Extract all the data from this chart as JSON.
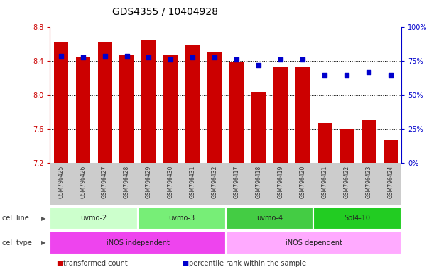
{
  "title": "GDS4355 / 10404928",
  "samples": [
    "GSM796425",
    "GSM796426",
    "GSM796427",
    "GSM796428",
    "GSM796429",
    "GSM796430",
    "GSM796431",
    "GSM796432",
    "GSM796417",
    "GSM796418",
    "GSM796419",
    "GSM796420",
    "GSM796421",
    "GSM796422",
    "GSM796423",
    "GSM796424"
  ],
  "transformed_count": [
    8.62,
    8.45,
    8.62,
    8.47,
    8.65,
    8.48,
    8.59,
    8.5,
    8.39,
    8.04,
    8.33,
    8.33,
    7.68,
    7.6,
    7.7,
    7.48
  ],
  "percentile_rank": [
    79,
    78,
    79,
    79,
    78,
    76,
    78,
    78,
    76,
    72,
    76,
    76,
    65,
    65,
    67,
    65
  ],
  "ylim_left": [
    7.2,
    8.8
  ],
  "ylim_right": [
    0,
    100
  ],
  "yticks_left": [
    7.2,
    7.6,
    8.0,
    8.4,
    8.8
  ],
  "yticks_right": [
    0,
    25,
    50,
    75,
    100
  ],
  "ytick_labels_right": [
    "0%",
    "25%",
    "50%",
    "75%",
    "100%"
  ],
  "bar_color": "#cc0000",
  "dot_color": "#0000cc",
  "cell_lines": [
    {
      "label": "uvmo-2",
      "start": 0,
      "end": 4,
      "color": "#ccffcc"
    },
    {
      "label": "uvmo-3",
      "start": 4,
      "end": 8,
      "color": "#77ee77"
    },
    {
      "label": "uvmo-4",
      "start": 8,
      "end": 12,
      "color": "#44cc44"
    },
    {
      "label": "Spl4-10",
      "start": 12,
      "end": 16,
      "color": "#22cc22"
    }
  ],
  "cell_types": [
    {
      "label": "iNOS independent",
      "start": 0,
      "end": 8,
      "color": "#ee44ee"
    },
    {
      "label": "iNOS dependent",
      "start": 8,
      "end": 16,
      "color": "#ffaaff"
    }
  ],
  "legend_items": [
    {
      "color": "#cc0000",
      "label": "transformed count"
    },
    {
      "color": "#0000cc",
      "label": "percentile rank within the sample"
    }
  ],
  "left_axis_color": "#cc0000",
  "right_axis_color": "#0000cc",
  "title_fontsize": 10,
  "tick_fontsize": 7,
  "bar_width": 0.65,
  "dot_size": 14,
  "grid_color": "black",
  "grid_linestyle": "dotted",
  "grid_linewidth": 0.7,
  "grid_yvals": [
    7.6,
    8.0,
    8.4
  ],
  "xlabel_bg_color": "#cccccc",
  "xlabel_text_color": "#333333",
  "xlabel_fontsize": 5.5
}
